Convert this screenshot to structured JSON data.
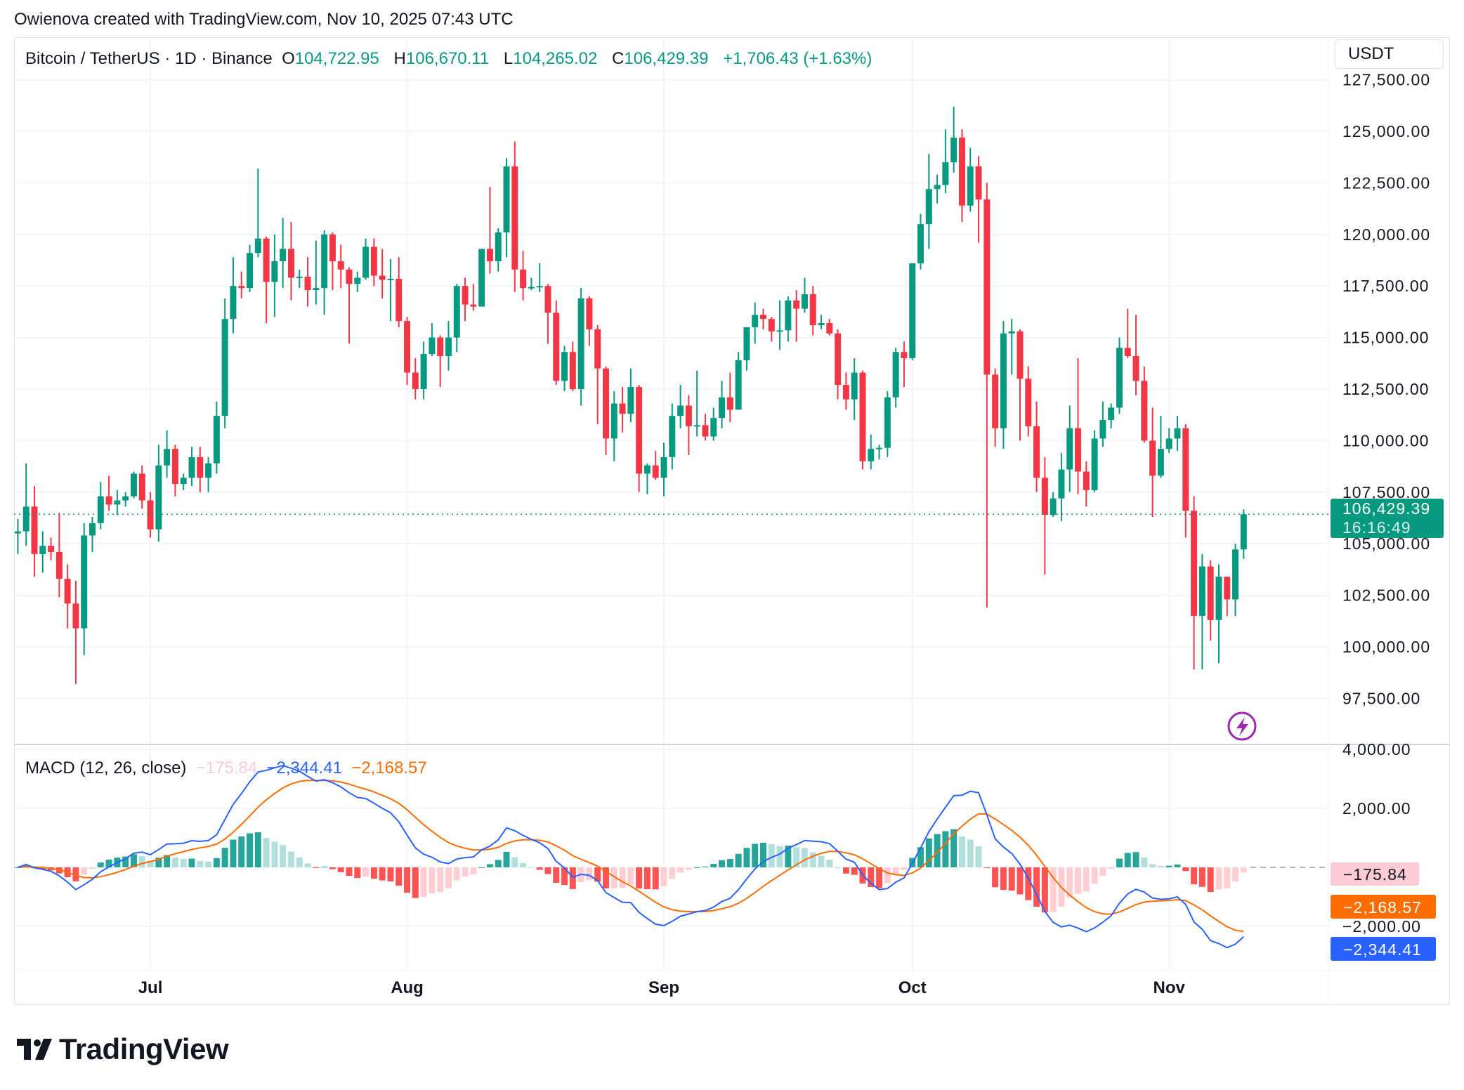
{
  "attribution": "Owienova created with TradingView.com, Nov 10, 2025 07:43 UTC",
  "legend": {
    "symbol": "Bitcoin / TetherUS · 1D · Binance",
    "open_label": "O",
    "open": "104,722.95",
    "high_label": "H",
    "high": "106,670.11",
    "low_label": "L",
    "low": "104,265.02",
    "close_label": "C",
    "close": "106,429.39",
    "change": "+1,706.43 (+1.63%)"
  },
  "currency_button": "USDT",
  "last_price": {
    "value": 106429.39,
    "label": "106,429.39",
    "countdown": "16:16:49"
  },
  "macd_legend": {
    "title": "MACD (12, 26, close)",
    "histogram": "−175.84",
    "macd": "−2,344.41",
    "signal": "−2,168.57"
  },
  "macd_axis_labels": {
    "histogram": "−175.84",
    "signal": "−2,168.57",
    "macd": "−2,344.41"
  },
  "branding": {
    "logo_text": "TradingView"
  },
  "colors": {
    "up": "#089981",
    "down": "#f23645",
    "macd": "#2962ff",
    "signal": "#ff6d00",
    "hist_up_strong": "#26a69a",
    "hist_up_weak": "#b2dfdb",
    "hist_down_strong": "#ff5252",
    "hist_down_weak": "#ffcdd2",
    "grid": "#f0f3fa",
    "alert": "#9c27b0"
  },
  "icons": {
    "alert": "lightning-circle-icon",
    "logo": "tradingview-logo-icon"
  },
  "chart_data": [
    {
      "type": "candlestick",
      "title": "Bitcoin / TetherUS · 1D · Binance",
      "y_axis": {
        "ticks": [
          "127,500.00",
          "125,000.00",
          "122,500.00",
          "120,000.00",
          "117,500.00",
          "115,000.00",
          "112,500.00",
          "110,000.00",
          "107,500.00",
          "105,000.00",
          "102,500.00",
          "100,000.00",
          "97,500.00"
        ],
        "ylim": [
          96000,
          127500
        ],
        "position": "right"
      },
      "x_axis": {
        "ticks": [
          "Jul",
          "Aug",
          "Sep",
          "Oct",
          "Nov"
        ]
      },
      "grid": true,
      "columns": [
        "date",
        "open",
        "high",
        "low",
        "close"
      ],
      "candles": [
        [
          "2025-06-15",
          105500,
          106200,
          104500,
          105600
        ],
        [
          "2025-06-16",
          105600,
          108900,
          104900,
          106800
        ],
        [
          "2025-06-17",
          106800,
          107800,
          103400,
          104500
        ],
        [
          "2025-06-18",
          104500,
          105600,
          103600,
          104900
        ],
        [
          "2025-06-19",
          104900,
          105300,
          104200,
          104600
        ],
        [
          "2025-06-20",
          104600,
          106500,
          102400,
          103300
        ],
        [
          "2025-06-21",
          103300,
          104000,
          100900,
          102100
        ],
        [
          "2025-06-22",
          102100,
          103200,
          98200,
          100900
        ],
        [
          "2025-06-23",
          100900,
          106000,
          99600,
          105400
        ],
        [
          "2025-06-24",
          105400,
          106300,
          104600,
          106000
        ],
        [
          "2025-06-25",
          106000,
          108000,
          105700,
          107300
        ],
        [
          "2025-06-26",
          107300,
          108300,
          106600,
          106900
        ],
        [
          "2025-06-27",
          106900,
          107600,
          106400,
          107100
        ],
        [
          "2025-06-28",
          107100,
          107500,
          106800,
          107300
        ],
        [
          "2025-06-29",
          107300,
          108500,
          107200,
          108400
        ],
        [
          "2025-06-30",
          108400,
          108800,
          106700,
          107100
        ],
        [
          "2025-07-01",
          107100,
          107500,
          105300,
          105700
        ],
        [
          "2025-07-02",
          105700,
          109800,
          105100,
          108800
        ],
        [
          "2025-07-03",
          108800,
          110500,
          108200,
          109600
        ],
        [
          "2025-07-04",
          109600,
          109800,
          107300,
          107900
        ],
        [
          "2025-07-05",
          107900,
          108400,
          107600,
          108200
        ],
        [
          "2025-07-06",
          108200,
          109700,
          107800,
          109200
        ],
        [
          "2025-07-07",
          109200,
          109700,
          107500,
          108200
        ],
        [
          "2025-07-08",
          108200,
          109200,
          107500,
          108900
        ],
        [
          "2025-07-09",
          108900,
          111900,
          108400,
          111200
        ],
        [
          "2025-07-10",
          111200,
          116900,
          110600,
          115900
        ],
        [
          "2025-07-11",
          115900,
          118900,
          115200,
          117500
        ],
        [
          "2025-07-12",
          117500,
          118200,
          116900,
          117400
        ],
        [
          "2025-07-13",
          117400,
          119500,
          117200,
          119100
        ],
        [
          "2025-07-14",
          119100,
          123200,
          118900,
          119800
        ],
        [
          "2025-07-15",
          119800,
          119900,
          115700,
          117700
        ],
        [
          "2025-07-16",
          117700,
          120000,
          116000,
          118700
        ],
        [
          "2025-07-17",
          118700,
          120800,
          117400,
          119300
        ],
        [
          "2025-07-18",
          119300,
          120600,
          116800,
          117900
        ],
        [
          "2025-07-19",
          117900,
          118300,
          117400,
          117950
        ],
        [
          "2025-07-20",
          117950,
          118900,
          116500,
          117300
        ],
        [
          "2025-07-21",
          117300,
          119700,
          116600,
          117400
        ],
        [
          "2025-07-22",
          117400,
          120200,
          116100,
          120000
        ],
        [
          "2025-07-23",
          120000,
          120100,
          117300,
          118700
        ],
        [
          "2025-07-24",
          118700,
          119500,
          117400,
          118300
        ],
        [
          "2025-07-25",
          118300,
          118400,
          114700,
          117600
        ],
        [
          "2025-07-26",
          117600,
          118200,
          117200,
          117900
        ],
        [
          "2025-07-27",
          117900,
          119800,
          117800,
          119400
        ],
        [
          "2025-07-28",
          119400,
          119800,
          117500,
          118000
        ],
        [
          "2025-07-29",
          118000,
          119300,
          116900,
          117800
        ],
        [
          "2025-07-30",
          117800,
          118800,
          115800,
          117850
        ],
        [
          "2025-07-31",
          117850,
          118900,
          115500,
          115800
        ],
        [
          "2025-08-01",
          115800,
          116000,
          112700,
          113300
        ],
        [
          "2025-08-02",
          113300,
          114000,
          112000,
          112500
        ],
        [
          "2025-08-03",
          112500,
          114800,
          112000,
          114200
        ],
        [
          "2025-08-04",
          114200,
          115700,
          114100,
          115000
        ],
        [
          "2025-08-05",
          115000,
          115100,
          112600,
          114100
        ],
        [
          "2025-08-06",
          114100,
          115800,
          113400,
          115000
        ],
        [
          "2025-08-07",
          115000,
          117600,
          114300,
          117500
        ],
        [
          "2025-08-08",
          117500,
          117900,
          115800,
          116600
        ],
        [
          "2025-08-09",
          116600,
          117600,
          116300,
          116500
        ],
        [
          "2025-08-10",
          116500,
          119300,
          116500,
          119300
        ],
        [
          "2025-08-11",
          119300,
          122300,
          118100,
          118700
        ],
        [
          "2025-08-12",
          118700,
          120300,
          118200,
          120100
        ],
        [
          "2025-08-13",
          120100,
          123700,
          118900,
          123300
        ],
        [
          "2025-08-14",
          123300,
          124500,
          117200,
          118300
        ],
        [
          "2025-08-15",
          118300,
          119200,
          116800,
          117400
        ],
        [
          "2025-08-16",
          117400,
          117900,
          117300,
          117450
        ],
        [
          "2025-08-17",
          117450,
          118600,
          117200,
          117500
        ],
        [
          "2025-08-18",
          117500,
          117600,
          114700,
          116200
        ],
        [
          "2025-08-19",
          116200,
          116800,
          112700,
          112900
        ],
        [
          "2025-08-20",
          112900,
          114600,
          112400,
          114300
        ],
        [
          "2025-08-21",
          114300,
          114800,
          112400,
          112500
        ],
        [
          "2025-08-22",
          112500,
          117400,
          111700,
          116900
        ],
        [
          "2025-08-23",
          116900,
          117000,
          114600,
          115400
        ],
        [
          "2025-08-24",
          115400,
          115600,
          110800,
          113500
        ],
        [
          "2025-08-25",
          113500,
          113600,
          109300,
          110100
        ],
        [
          "2025-08-26",
          110100,
          112400,
          109000,
          111800
        ],
        [
          "2025-08-27",
          111800,
          112600,
          110400,
          111300
        ],
        [
          "2025-08-28",
          111300,
          113500,
          110900,
          112600
        ],
        [
          "2025-08-29",
          112600,
          112700,
          107500,
          108400
        ],
        [
          "2025-08-30",
          108400,
          108900,
          107400,
          108800
        ],
        [
          "2025-08-31",
          108800,
          109500,
          108100,
          108200
        ],
        [
          "2025-09-01",
          108200,
          109900,
          107300,
          109200
        ],
        [
          "2025-09-02",
          109200,
          111800,
          108600,
          111200
        ],
        [
          "2025-09-03",
          111200,
          112700,
          110600,
          111700
        ],
        [
          "2025-09-04",
          111700,
          112200,
          109300,
          110700
        ],
        [
          "2025-09-05",
          110700,
          113400,
          110200,
          110750
        ],
        [
          "2025-09-06",
          110750,
          111300,
          110000,
          110200
        ],
        [
          "2025-09-07",
          110200,
          111600,
          110000,
          111100
        ],
        [
          "2025-09-08",
          111100,
          112900,
          110600,
          112100
        ],
        [
          "2025-09-09",
          112100,
          113300,
          110900,
          111500
        ],
        [
          "2025-09-10",
          111500,
          114300,
          111500,
          113900
        ],
        [
          "2025-09-11",
          113900,
          115500,
          113400,
          115500
        ],
        [
          "2025-09-12",
          115500,
          116700,
          114700,
          116100
        ],
        [
          "2025-09-13",
          116100,
          116400,
          115400,
          115900
        ],
        [
          "2025-09-14",
          115900,
          116000,
          114800,
          115300
        ],
        [
          "2025-09-15",
          115300,
          116800,
          114400,
          115350
        ],
        [
          "2025-09-16",
          115350,
          117000,
          114800,
          116800
        ],
        [
          "2025-09-17",
          116800,
          117300,
          114800,
          116400
        ],
        [
          "2025-09-18",
          116400,
          117900,
          116200,
          117100
        ],
        [
          "2025-09-19",
          117100,
          117500,
          115100,
          115600
        ],
        [
          "2025-09-20",
          115600,
          116100,
          115400,
          115700
        ],
        [
          "2025-09-21",
          115700,
          115900,
          115100,
          115200
        ],
        [
          "2025-09-22",
          115200,
          115400,
          112000,
          112700
        ],
        [
          "2025-09-23",
          112700,
          113300,
          111500,
          112000
        ],
        [
          "2025-09-24",
          112000,
          114000,
          111000,
          113300
        ],
        [
          "2025-09-25",
          113300,
          113400,
          108600,
          109000
        ],
        [
          "2025-09-26",
          109000,
          110300,
          108600,
          109600
        ],
        [
          "2025-09-27",
          109600,
          109800,
          109100,
          109650
        ],
        [
          "2025-09-28",
          109650,
          112400,
          109200,
          112100
        ],
        [
          "2025-09-29",
          112100,
          114500,
          111600,
          114300
        ],
        [
          "2025-09-30",
          114300,
          114800,
          112600,
          114000
        ],
        [
          "2025-10-01",
          114000,
          118600,
          113900,
          118600
        ],
        [
          "2025-10-02",
          118600,
          121000,
          118300,
          120500
        ],
        [
          "2025-10-03",
          120500,
          123900,
          119300,
          122200
        ],
        [
          "2025-10-04",
          122200,
          122900,
          121500,
          122400
        ],
        [
          "2025-10-05",
          122400,
          125100,
          122000,
          123500
        ],
        [
          "2025-10-06",
          123500,
          126200,
          123000,
          124700
        ],
        [
          "2025-10-07",
          124700,
          125100,
          120600,
          121400
        ],
        [
          "2025-10-08",
          121400,
          124200,
          121100,
          123300
        ],
        [
          "2025-10-09",
          123300,
          123800,
          119600,
          121700
        ],
        [
          "2025-10-10",
          121700,
          122500,
          101900,
          113200
        ],
        [
          "2025-10-11",
          113200,
          113500,
          109700,
          110600
        ],
        [
          "2025-10-12",
          110600,
          115800,
          109600,
          115200
        ],
        [
          "2025-10-13",
          115200,
          115900,
          113200,
          115300
        ],
        [
          "2025-10-14",
          115300,
          115400,
          110000,
          113000
        ],
        [
          "2025-10-15",
          113000,
          113600,
          110200,
          110700
        ],
        [
          "2025-10-16",
          110700,
          111900,
          107500,
          108200
        ],
        [
          "2025-10-17",
          108200,
          109200,
          103500,
          106400
        ],
        [
          "2025-10-18",
          106400,
          107500,
          106300,
          107200
        ],
        [
          "2025-10-19",
          107200,
          109400,
          106100,
          108600
        ],
        [
          "2025-10-20",
          108600,
          111700,
          107500,
          110600
        ],
        [
          "2025-10-21",
          110600,
          114000,
          107400,
          108500
        ],
        [
          "2025-10-22",
          108500,
          109000,
          106800,
          107600
        ],
        [
          "2025-10-23",
          107600,
          110500,
          107500,
          110100
        ],
        [
          "2025-10-24",
          110100,
          111900,
          109700,
          111000
        ],
        [
          "2025-10-25",
          111000,
          111800,
          110600,
          111600
        ],
        [
          "2025-10-26",
          111600,
          115000,
          111300,
          114500
        ],
        [
          "2025-10-27",
          114500,
          116400,
          114000,
          114100
        ],
        [
          "2025-10-28",
          114100,
          116100,
          112200,
          112900
        ],
        [
          "2025-10-29",
          112900,
          113600,
          109900,
          110000
        ],
        [
          "2025-10-30",
          110000,
          111600,
          106300,
          108300
        ],
        [
          "2025-10-31",
          108300,
          111200,
          108200,
          109600
        ],
        [
          "2025-11-01",
          109600,
          110600,
          109400,
          110100
        ],
        [
          "2025-11-02",
          110100,
          111200,
          109500,
          110600
        ],
        [
          "2025-11-03",
          110600,
          110800,
          105300,
          106600
        ],
        [
          "2025-11-04",
          106600,
          107300,
          98900,
          101500
        ],
        [
          "2025-11-05",
          101500,
          104500,
          98900,
          103900
        ],
        [
          "2025-11-06",
          103900,
          104200,
          100300,
          101300
        ],
        [
          "2025-11-07",
          101300,
          104000,
          99200,
          103400
        ],
        [
          "2025-11-08",
          103400,
          103400,
          101500,
          102300
        ],
        [
          "2025-11-09",
          102300,
          105000,
          101500,
          104722.95
        ],
        [
          "2025-11-10",
          104722.95,
          106670.11,
          104265.02,
          106429.39
        ]
      ]
    },
    {
      "type": "line",
      "title": "MACD (12, 26, close)",
      "indicator": {
        "fast": 12,
        "slow": 26,
        "source": "close",
        "signal": 9
      },
      "y_axis": {
        "ticks": [
          "4,000.00",
          "2,000.00",
          "−2,000.00"
        ],
        "ylim": [
          -3000,
          4200
        ],
        "position": "right"
      },
      "last_values": {
        "histogram": -175.84,
        "macd": -2344.41,
        "signal": -2168.57
      },
      "series": [
        "macd",
        "signal",
        "histogram"
      ]
    }
  ]
}
